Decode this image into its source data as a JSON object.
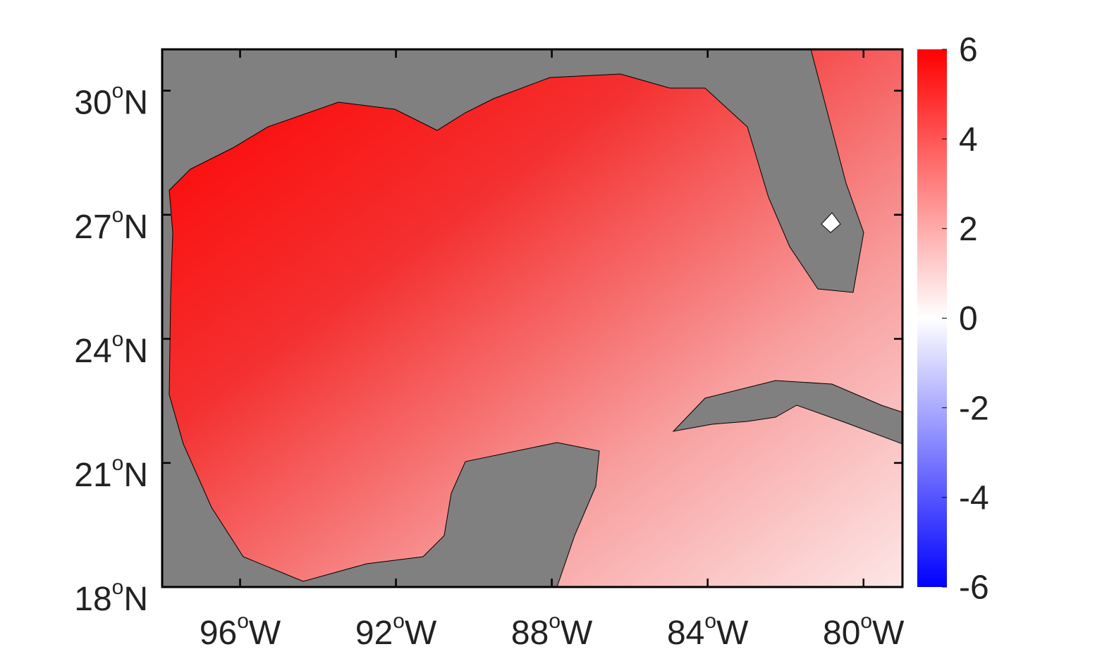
{
  "xlim": [
    -98,
    -79
  ],
  "ylim": [
    18,
    31
  ],
  "xticks": [
    {
      "value": -96,
      "label": "96oW"
    },
    {
      "value": -92,
      "label": "92oW"
    },
    {
      "value": -88,
      "label": "88oW"
    },
    {
      "value": -84,
      "label": "84oW"
    },
    {
      "value": -80,
      "label": "80oW"
    }
  ],
  "yticks": [
    {
      "value": 18,
      "label": "18oN"
    },
    {
      "value": 21,
      "label": "21oN"
    },
    {
      "value": 24,
      "label": "24oN"
    },
    {
      "value": 27,
      "label": "27oN"
    },
    {
      "value": 30,
      "label": "30oN"
    }
  ],
  "colorbar": {
    "lim": [
      -6,
      6
    ],
    "ticks": [
      -6,
      -4,
      -2,
      0,
      2,
      4,
      6
    ],
    "colors": [
      "#0000ff",
      "#ffffff",
      "#ff0000"
    ]
  }
}
